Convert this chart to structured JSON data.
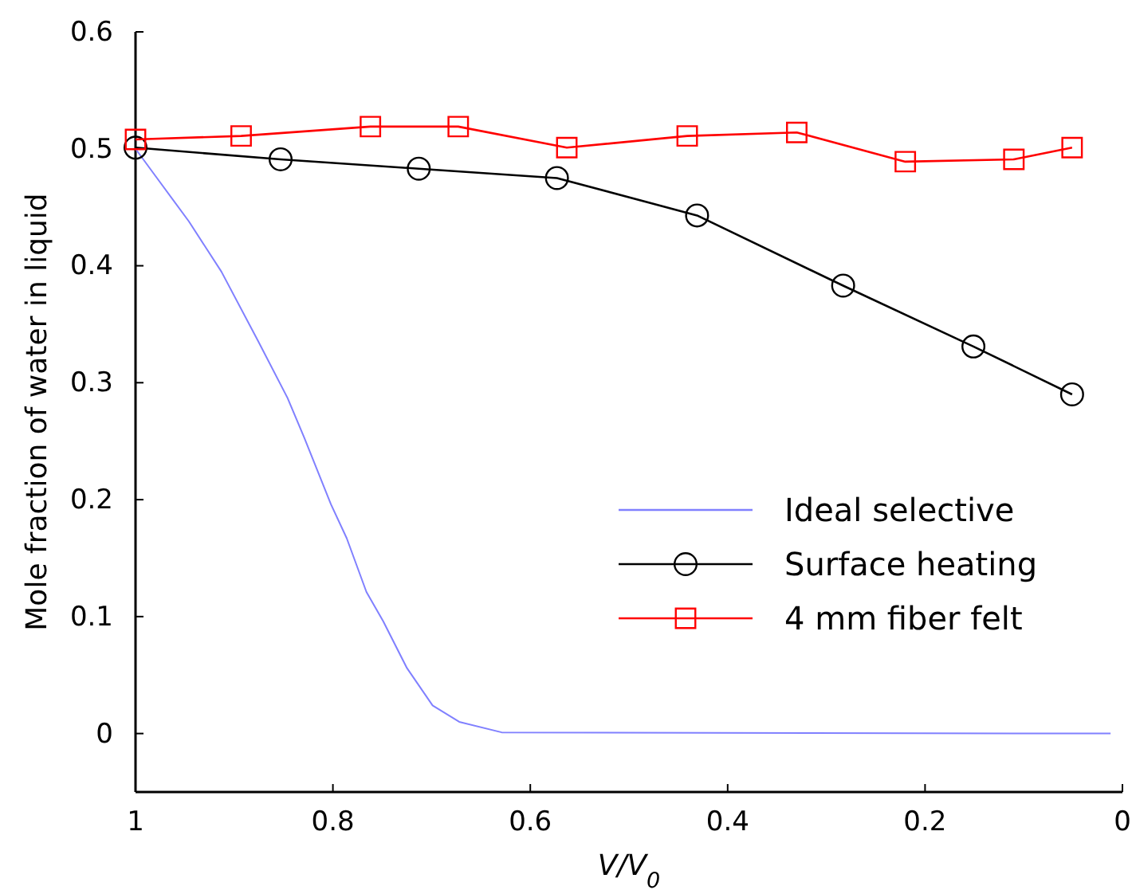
{
  "chart_data": {
    "type": "line",
    "xlabel": "V/V$_{0}$",
    "ylabel": "Mole fraction of water in liquid",
    "xlim": [
      1,
      0
    ],
    "ylim": [
      -0.05,
      0.6
    ],
    "xticks": [
      1,
      0.8,
      0.6,
      0.4,
      0.2,
      0
    ],
    "yticks": [
      {
        "value": -0.05,
        "label": null
      },
      0,
      0.1,
      0.2,
      0.3,
      0.4,
      0.5,
      0.6
    ],
    "grid": false,
    "legend": "right",
    "series": [
      {
        "name": "Ideal selective",
        "color": "#8080ff",
        "marker": "none",
        "x": [
          1,
          0.98,
          0.946,
          0.913,
          0.876,
          0.846,
          0.829,
          0.802,
          0.786,
          0.766,
          0.749,
          0.725,
          0.699,
          0.672,
          0.629,
          0.012
        ],
        "values": [
          0.5,
          0.477,
          0.438,
          0.395,
          0.336,
          0.287,
          0.253,
          0.196,
          0.167,
          0.121,
          0.096,
          0.056,
          0.024,
          0.01,
          0.001,
          0
        ]
      },
      {
        "name": "Surface heating",
        "color": "#000000",
        "marker": "circle",
        "x": [
          1,
          0.853,
          0.713,
          0.573,
          0.431,
          0.283,
          0.151,
          0.051
        ],
        "values": [
          0.501,
          0.491,
          0.483,
          0.475,
          0.443,
          0.383,
          0.331,
          0.29
        ]
      },
      {
        "name": "4 mm fiber felt",
        "color": "#ff0000",
        "marker": "square",
        "x": [
          1,
          0.893,
          0.762,
          0.673,
          0.563,
          0.441,
          0.33,
          0.22,
          0.11,
          0.051
        ],
        "values": [
          0.508,
          0.511,
          0.519,
          0.519,
          0.501,
          0.511,
          0.514,
          0.489,
          0.491,
          0.501
        ]
      }
    ]
  }
}
